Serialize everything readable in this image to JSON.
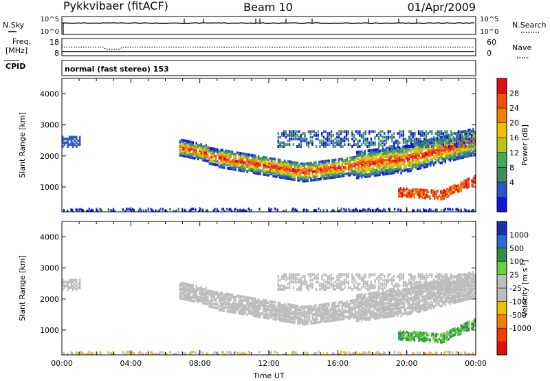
{
  "header": {
    "station": "Pykkvibaer (fitACF)",
    "beam": "Beam 10",
    "date": "01/Apr/2009"
  },
  "strip": {
    "nsky_label": "N.Sky",
    "nsky_ticks": [
      "10^5",
      "10^0"
    ],
    "nsearch_label": "N.Search",
    "nsearch_ticks": [
      "10^5",
      "10^0"
    ],
    "freq_label": "Freq.",
    "freq_unit": "[MHz]",
    "freq_ticks": [
      "18",
      "8"
    ],
    "nave_label": "Nave",
    "nave_ticks": [
      "60",
      "0"
    ],
    "cpid_label": "CPID",
    "cpid_text": "normal (fast stereo) 153"
  },
  "colors": {
    "power_scale": [
      "#1414e0",
      "#2a57c4",
      "#3f8f5a",
      "#43a85a",
      "#b8c41c",
      "#f0c000",
      "#f08000",
      "#f05010",
      "#e01010"
    ],
    "velocity_scale": [
      "#1a2fb0",
      "#2d6ad0",
      "#2c8f4a",
      "#6fce3c",
      "#bdbdbd",
      "#bdbdbd",
      "#f0c000",
      "#f08000",
      "#f04000",
      "#e01010"
    ]
  },
  "chart_data": [
    {
      "type": "heatmap",
      "panel": "power",
      "ylabel": "Slant Range [km]",
      "ylim": [
        200,
        4500
      ],
      "yticks": [
        "1000",
        "2000",
        "3000",
        "4000"
      ],
      "xlim": [
        0,
        24
      ],
      "colorbar_label": "Power [dB]",
      "colorbar_ticks": [
        "4",
        "8",
        "12",
        "16",
        "20",
        "24",
        "28"
      ]
    },
    {
      "type": "heatmap",
      "panel": "velocity",
      "ylabel": "Slant Range [km]",
      "xlabel": "Time UT",
      "ylim": [
        200,
        4500
      ],
      "yticks": [
        "1000",
        "2000",
        "3000",
        "4000"
      ],
      "xlim": [
        0,
        24
      ],
      "xticks": [
        "00:00",
        "04:00",
        "08:00",
        "12:00",
        "16:00",
        "20:00",
        "00:00"
      ],
      "colorbar_label": "Velocity [m s-1]",
      "colorbar_ticks": [
        "1000",
        "500",
        "100",
        "25",
        "-25",
        "-100",
        "-500",
        "-1000"
      ]
    }
  ]
}
